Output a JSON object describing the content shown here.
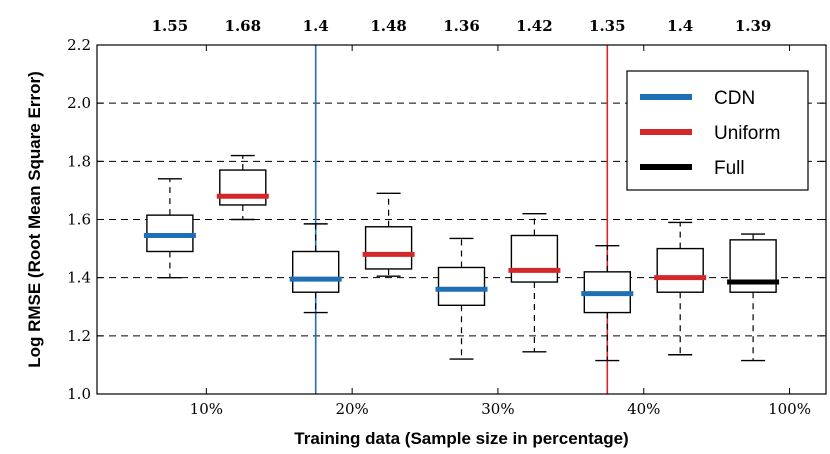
{
  "chart_data": {
    "type": "boxplot",
    "title": "",
    "xlabel": "Training data (Sample size in percentage)",
    "ylabel": "Log RMSE (Root Mean Square Error)",
    "ylim": [
      1.0,
      2.2
    ],
    "yticks": [
      "1.0",
      "1.2",
      "1.4",
      "1.6",
      "1.8",
      "2.0",
      "2.2"
    ],
    "ytick_values": [
      1.0,
      1.2,
      1.4,
      1.6,
      1.8,
      2.0,
      2.2
    ],
    "grid": "horizontal dashed",
    "categories": [
      "10%",
      "20%",
      "30%",
      "40%",
      "100%"
    ],
    "category_positions": [
      1.5,
      3.5,
      5.5,
      7.5,
      9.5
    ],
    "vlines": [
      {
        "x": 3,
        "color": "#1f6fb4"
      },
      {
        "x": 7,
        "color": "#d62728"
      }
    ],
    "top_labels": [
      "1.55",
      "1.68",
      "1.4",
      "1.48",
      "1.36",
      "1.42",
      "1.35",
      "1.4",
      "1.39"
    ],
    "series": [
      {
        "name": "CDN",
        "color": "#1f6fb4"
      },
      {
        "name": "Uniform",
        "color": "#d62728"
      },
      {
        "name": "Full",
        "color": "#000000"
      }
    ],
    "boxes": [
      {
        "pos": 1,
        "series": "CDN",
        "whisker_low": 1.4,
        "q1": 1.49,
        "median": 1.545,
        "q3": 1.615,
        "whisker_high": 1.74
      },
      {
        "pos": 2,
        "series": "Uniform",
        "whisker_low": 1.6,
        "q1": 1.65,
        "median": 1.68,
        "q3": 1.77,
        "whisker_high": 1.82
      },
      {
        "pos": 3,
        "series": "CDN",
        "whisker_low": 1.28,
        "q1": 1.35,
        "median": 1.395,
        "q3": 1.49,
        "whisker_high": 1.585
      },
      {
        "pos": 4,
        "series": "Uniform",
        "whisker_low": 1.405,
        "q1": 1.43,
        "median": 1.48,
        "q3": 1.575,
        "whisker_high": 1.69
      },
      {
        "pos": 5,
        "series": "CDN",
        "whisker_low": 1.12,
        "q1": 1.305,
        "median": 1.36,
        "q3": 1.435,
        "whisker_high": 1.535
      },
      {
        "pos": 6,
        "series": "Uniform",
        "whisker_low": 1.145,
        "q1": 1.385,
        "median": 1.425,
        "q3": 1.545,
        "whisker_high": 1.62
      },
      {
        "pos": 7,
        "series": "CDN",
        "whisker_low": 1.115,
        "q1": 1.28,
        "median": 1.345,
        "q3": 1.42,
        "whisker_high": 1.51
      },
      {
        "pos": 8,
        "series": "Uniform",
        "whisker_low": 1.135,
        "q1": 1.35,
        "median": 1.4,
        "q3": 1.5,
        "whisker_high": 1.59
      },
      {
        "pos": 9,
        "series": "Full",
        "whisker_low": 1.115,
        "q1": 1.35,
        "median": 1.385,
        "q3": 1.53,
        "whisker_high": 1.55
      }
    ],
    "legend_position": "upper-right"
  }
}
